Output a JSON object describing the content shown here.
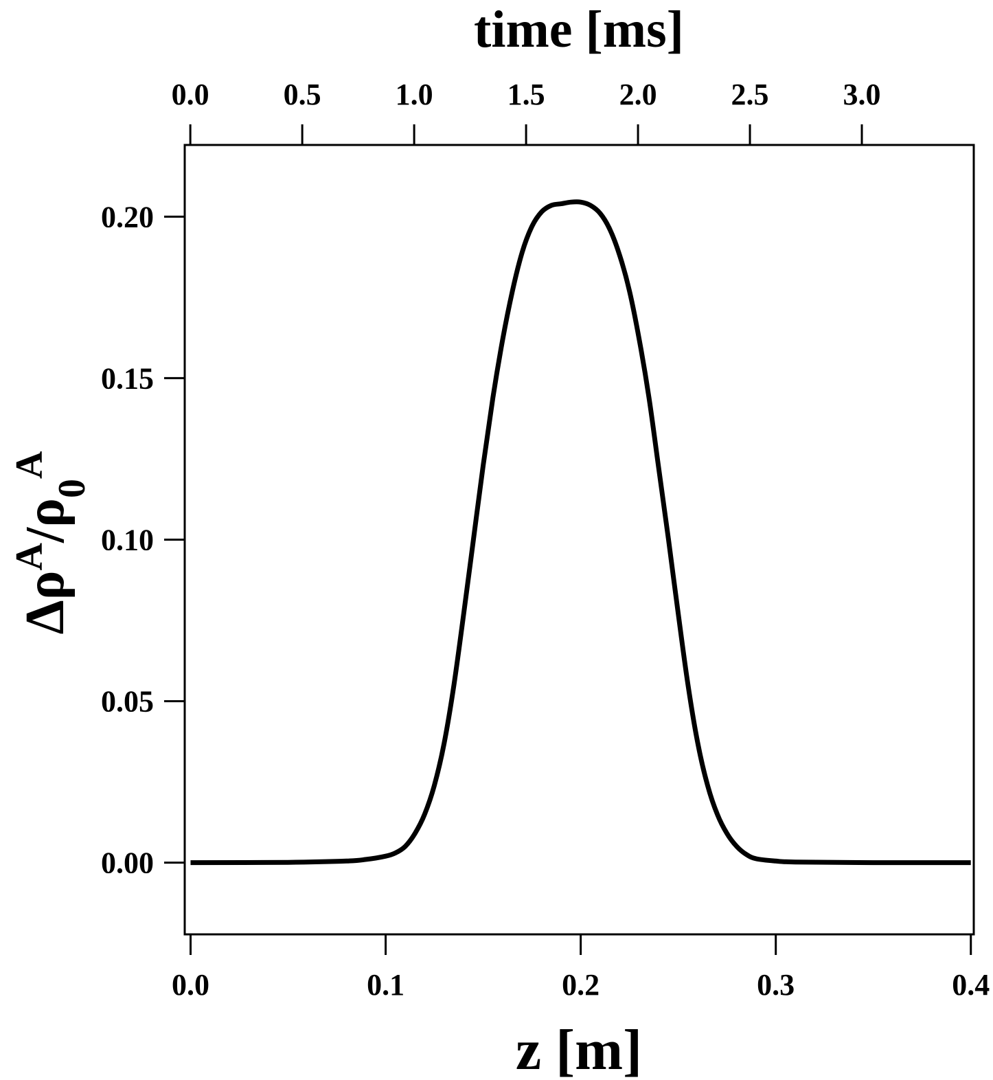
{
  "chart_data": {
    "type": "line",
    "xlabel": "z [m]",
    "x2label": "time [ms]",
    "ylabel": {
      "base": "Δρ",
      "sup1": "A",
      "sep": "/ρ",
      "sub": "0",
      "sup2": "A"
    },
    "xlim": [
      -0.003,
      0.4015
    ],
    "ylim": [
      -0.0222,
      0.2222
    ],
    "x2lim": [
      -0.025,
      3.5
    ],
    "grid": false,
    "legend": "none",
    "x_ticks": [
      {
        "value": 0.0,
        "label": "0.0"
      },
      {
        "value": 0.1,
        "label": "0.1"
      },
      {
        "value": 0.2,
        "label": "0.2"
      },
      {
        "value": 0.3,
        "label": "0.3"
      },
      {
        "value": 0.4,
        "label": "0.4"
      }
    ],
    "x2_ticks": [
      {
        "value": 0.0,
        "label": "0.0"
      },
      {
        "value": 0.5,
        "label": "0.5"
      },
      {
        "value": 1.0,
        "label": "1.0"
      },
      {
        "value": 1.5,
        "label": "1.5"
      },
      {
        "value": 2.0,
        "label": "2.0"
      },
      {
        "value": 2.5,
        "label": "2.5"
      },
      {
        "value": 3.0,
        "label": "3.0"
      }
    ],
    "y_ticks": [
      {
        "value": 0.0,
        "label": "0.00"
      },
      {
        "value": 0.05,
        "label": "0.05"
      },
      {
        "value": 0.1,
        "label": "0.10"
      },
      {
        "value": 0.15,
        "label": "0.15"
      },
      {
        "value": 0.2,
        "label": "0.20"
      }
    ],
    "series": [
      {
        "color": "#000000",
        "x": [
          0.0,
          0.05,
          0.08,
          0.09,
          0.1,
          0.105,
          0.11,
          0.115,
          0.12,
          0.125,
          0.13,
          0.135,
          0.14,
          0.145,
          0.15,
          0.155,
          0.16,
          0.165,
          0.17,
          0.175,
          0.18,
          0.185,
          0.19,
          0.195,
          0.2,
          0.205,
          0.21,
          0.215,
          0.22,
          0.225,
          0.23,
          0.235,
          0.24,
          0.245,
          0.25,
          0.255,
          0.26,
          0.265,
          0.27,
          0.275,
          0.28,
          0.285,
          0.29,
          0.3,
          0.31,
          0.35,
          0.4
        ],
        "y": [
          0.0,
          0.0001,
          0.0005,
          0.001,
          0.002,
          0.003,
          0.005,
          0.009,
          0.015,
          0.024,
          0.037,
          0.055,
          0.077,
          0.1,
          0.123,
          0.144,
          0.162,
          0.177,
          0.189,
          0.197,
          0.2015,
          0.2035,
          0.204,
          0.2045,
          0.2045,
          0.2035,
          0.201,
          0.196,
          0.188,
          0.177,
          0.162,
          0.144,
          0.122,
          0.1,
          0.077,
          0.055,
          0.037,
          0.024,
          0.015,
          0.009,
          0.005,
          0.0025,
          0.0012,
          0.0005,
          0.0002,
          0.0,
          0.0
        ]
      }
    ]
  }
}
